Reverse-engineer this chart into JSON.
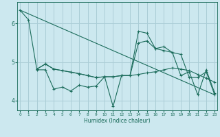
{
  "title": "",
  "xlabel": "Humidex (Indice chaleur)",
  "bg_color": "#cce8ef",
  "line_color": "#1a6b5a",
  "grid_color": "#aacdd6",
  "series": [
    {
      "x": [
        0,
        1,
        2,
        3,
        4,
        5,
        6,
        7,
        8,
        9,
        10,
        11,
        12,
        13,
        14,
        15,
        16,
        17,
        18,
        19,
        20,
        21,
        22,
        23
      ],
      "y": [
        6.35,
        6.1,
        4.8,
        4.8,
        4.3,
        4.35,
        4.25,
        4.4,
        4.35,
        4.38,
        4.62,
        3.85,
        4.65,
        4.65,
        5.8,
        5.75,
        5.35,
        5.4,
        5.25,
        4.65,
        4.75,
        4.15,
        4.8,
        4.2
      ]
    },
    {
      "x": [
        2,
        3,
        4,
        5,
        6,
        7,
        8,
        9,
        10,
        11,
        12,
        13,
        14,
        15,
        16,
        17,
        18,
        19,
        20,
        21,
        22,
        23
      ],
      "y": [
        4.82,
        4.95,
        4.82,
        4.78,
        4.74,
        4.7,
        4.65,
        4.6,
        4.62,
        4.62,
        4.65,
        4.65,
        4.68,
        4.72,
        4.75,
        4.8,
        4.85,
        4.82,
        4.78,
        4.68,
        4.58,
        4.48
      ]
    },
    {
      "x": [
        2,
        3,
        4,
        5,
        6,
        7,
        8,
        9,
        10,
        11,
        12,
        13,
        14,
        15,
        16,
        17,
        18,
        19,
        20,
        21,
        22,
        23
      ],
      "y": [
        4.82,
        4.95,
        4.82,
        4.78,
        4.74,
        4.7,
        4.65,
        4.6,
        4.62,
        4.62,
        4.65,
        4.65,
        5.5,
        5.55,
        5.35,
        5.3,
        5.25,
        5.2,
        4.6,
        4.6,
        4.75,
        4.15
      ]
    },
    {
      "x": [
        0,
        23
      ],
      "y": [
        6.35,
        4.15
      ]
    }
  ],
  "xlim": [
    -0.3,
    23.3
  ],
  "ylim": [
    3.75,
    6.55
  ],
  "yticks": [
    4,
    5,
    6
  ],
  "xticks": [
    0,
    1,
    2,
    3,
    4,
    5,
    6,
    7,
    8,
    9,
    10,
    11,
    12,
    13,
    14,
    15,
    16,
    17,
    18,
    19,
    20,
    21,
    22,
    23
  ]
}
